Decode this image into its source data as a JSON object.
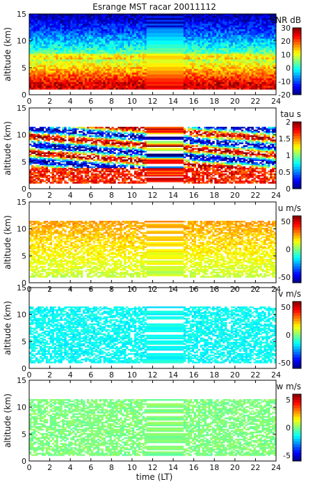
{
  "figure": {
    "title": "Esrange MST racar 20011112",
    "xlabel": "time (LT)"
  },
  "chart_data": [
    {
      "type": "heatmap",
      "ylabel": "altitude (km)",
      "x_ticks": [
        "0",
        "2",
        "4",
        "6",
        "8",
        "10",
        "12",
        "14",
        "16",
        "18",
        "20",
        "22",
        "24"
      ],
      "xlim": [
        0,
        24
      ],
      "y_ticks": [
        "0",
        "5",
        "10",
        "15"
      ],
      "ylim": [
        0,
        15
      ],
      "colorbar": {
        "label": "SNR dB",
        "ticks": [
          "-20",
          "-10",
          "0",
          "10",
          "20",
          "30"
        ],
        "range": [
          -20,
          30
        ]
      },
      "data_gap_hours": [
        11.5,
        15.0
      ],
      "altitude_range_km": [
        1,
        15
      ],
      "description_values": {
        "low_altitude_snr_db": 28,
        "high_altitude_snr_db": -15
      }
    },
    {
      "type": "heatmap",
      "ylabel": "altitude (km)",
      "x_ticks": [
        "0",
        "2",
        "4",
        "6",
        "8",
        "10",
        "12",
        "14",
        "16",
        "18",
        "20",
        "22",
        "24"
      ],
      "xlim": [
        0,
        24
      ],
      "y_ticks": [
        "0",
        "5",
        "10",
        "15"
      ],
      "ylim": [
        0,
        15
      ],
      "colorbar": {
        "label": "tau s",
        "ticks": [
          "0",
          "0.5",
          "1",
          "1.5",
          "2"
        ],
        "range": [
          0,
          2
        ]
      },
      "data_gap_hours": [
        11.5,
        15.0
      ],
      "altitude_range_km": [
        1,
        11.5
      ]
    },
    {
      "type": "heatmap",
      "ylabel": "altitude (km)",
      "x_ticks": [
        "0",
        "2",
        "4",
        "6",
        "8",
        "10",
        "12",
        "14",
        "16",
        "18",
        "20",
        "22",
        "24"
      ],
      "xlim": [
        0,
        24
      ],
      "y_ticks": [
        "0",
        "5",
        "10",
        "15"
      ],
      "ylim": [
        0,
        15
      ],
      "colorbar": {
        "label": "u m/s",
        "ticks": [
          "-50",
          "0",
          "50"
        ],
        "range": [
          -60,
          60
        ]
      },
      "data_gap_hours": [
        11.5,
        15.0
      ],
      "altitude_range_km": [
        1,
        11.5
      ]
    },
    {
      "type": "heatmap",
      "ylabel": "altitude (km)",
      "x_ticks": [
        "0",
        "2",
        "4",
        "6",
        "8",
        "10",
        "12",
        "14",
        "16",
        "18",
        "20",
        "22",
        "24"
      ],
      "xlim": [
        0,
        24
      ],
      "y_ticks": [
        "0",
        "5",
        "10",
        "15"
      ],
      "ylim": [
        0,
        15
      ],
      "colorbar": {
        "label": "v m/s",
        "ticks": [
          "-50",
          "0",
          "50"
        ],
        "range": [
          -60,
          60
        ]
      },
      "data_gap_hours": [
        11.5,
        15.0
      ],
      "altitude_range_km": [
        1,
        11.5
      ]
    },
    {
      "type": "heatmap",
      "ylabel": "altitude (km)",
      "x_ticks": [
        "0",
        "2",
        "4",
        "6",
        "8",
        "10",
        "12",
        "14",
        "16",
        "18",
        "20",
        "22",
        "24"
      ],
      "xlim": [
        0,
        24
      ],
      "y_ticks": [
        "0",
        "5",
        "10",
        "15"
      ],
      "ylim": [
        0,
        15
      ],
      "colorbar": {
        "label": "w m/s",
        "ticks": [
          "-5",
          "0",
          "5"
        ],
        "range": [
          -6,
          6
        ]
      },
      "data_gap_hours": [
        11.5,
        15.0
      ],
      "altitude_range_km": [
        1,
        11.5
      ]
    }
  ]
}
